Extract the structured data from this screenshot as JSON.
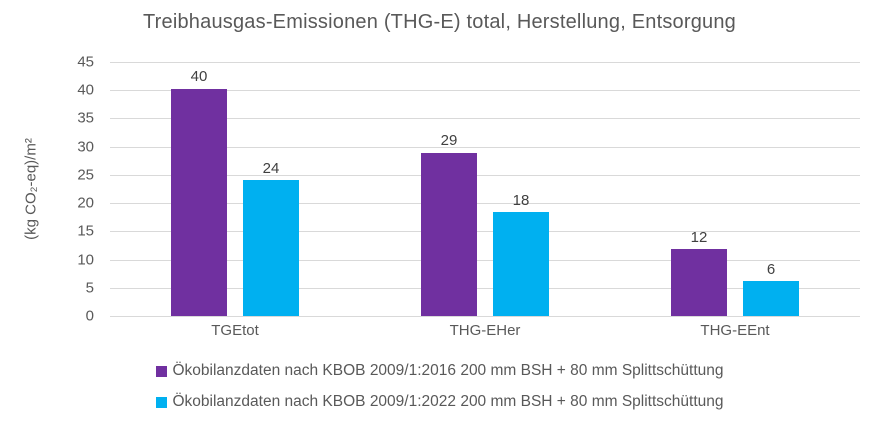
{
  "chart_data": {
    "type": "bar",
    "title": "Treibhausgas-Emissionen (THG-E) total, Herstellung, Entsorgung",
    "ylabel": "(kg CO₂-eq)/m²",
    "xlabel": "",
    "categories": [
      "TGEtot",
      "THG-EHer",
      "THG-EEnt"
    ],
    "series": [
      {
        "name": "Ökobilanzdaten nach KBOB 2009/1:2016 200 mm BSH + 80 mm Splittschüttung",
        "color": "#7030A0",
        "values": [
          40,
          29,
          12
        ],
        "values_precise": [
          40.3,
          28.9,
          11.8
        ]
      },
      {
        "name": "Ökobilanzdaten nach KBOB 2009/1:2022 200 mm BSH + 80 mm Splittschüttung",
        "color": "#00B0F0",
        "values": [
          24,
          18,
          6
        ],
        "values_precise": [
          24.1,
          18.4,
          6.2
        ]
      }
    ],
    "ylim": [
      0,
      45
    ],
    "yticks": [
      0,
      5,
      10,
      15,
      20,
      25,
      30,
      35,
      40,
      45
    ],
    "grid": "horizontal",
    "legend_position": "bottom",
    "axis_text_color": "#595959",
    "bar_label_color": "#404040",
    "gridline_color": "#D9D9D9",
    "background_color": "#FFFFFF"
  }
}
